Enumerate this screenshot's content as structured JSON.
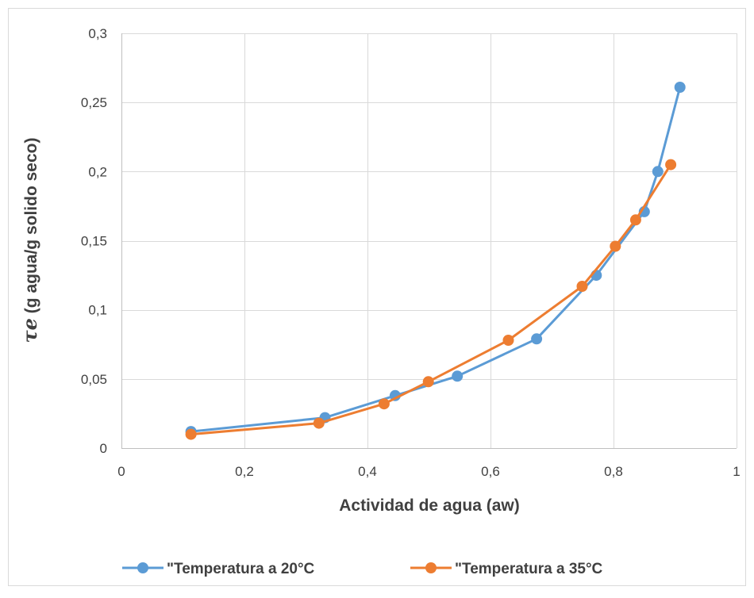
{
  "chart_data": {
    "type": "line",
    "title": "",
    "xlabel": "Actividad de agua (aw)",
    "ylabel_symbol": "τe",
    "ylabel_text": " (g agua/g solido seco)",
    "xlim": [
      0,
      1
    ],
    "ylim": [
      0,
      0.3
    ],
    "x_ticks": [
      "0",
      "0,2",
      "0,4",
      "0,6",
      "0,8",
      "1"
    ],
    "x_tick_values": [
      0,
      0.2,
      0.4,
      0.6,
      0.8,
      1
    ],
    "y_ticks": [
      "0",
      "0,05",
      "0,1",
      "0,15",
      "0,2",
      "0,25",
      "0,3"
    ],
    "y_tick_values": [
      0,
      0.05,
      0.1,
      0.15,
      0.2,
      0.25,
      0.3
    ],
    "grid": true,
    "legend_position": "bottom",
    "series": [
      {
        "name": "\"Temperatura a 20°C",
        "color": "#5B9BD5",
        "x": [
          0.113,
          0.331,
          0.445,
          0.546,
          0.675,
          0.772,
          0.85,
          0.872,
          0.908
        ],
        "y": [
          0.012,
          0.022,
          0.038,
          0.052,
          0.079,
          0.125,
          0.171,
          0.2,
          0.261
        ]
      },
      {
        "name": "\"Temperatura a 35°C",
        "color": "#ED7D31",
        "x": [
          0.113,
          0.321,
          0.427,
          0.499,
          0.629,
          0.749,
          0.803,
          0.836,
          0.893
        ],
        "y": [
          0.01,
          0.018,
          0.032,
          0.048,
          0.078,
          0.117,
          0.146,
          0.165,
          0.205
        ]
      }
    ]
  }
}
